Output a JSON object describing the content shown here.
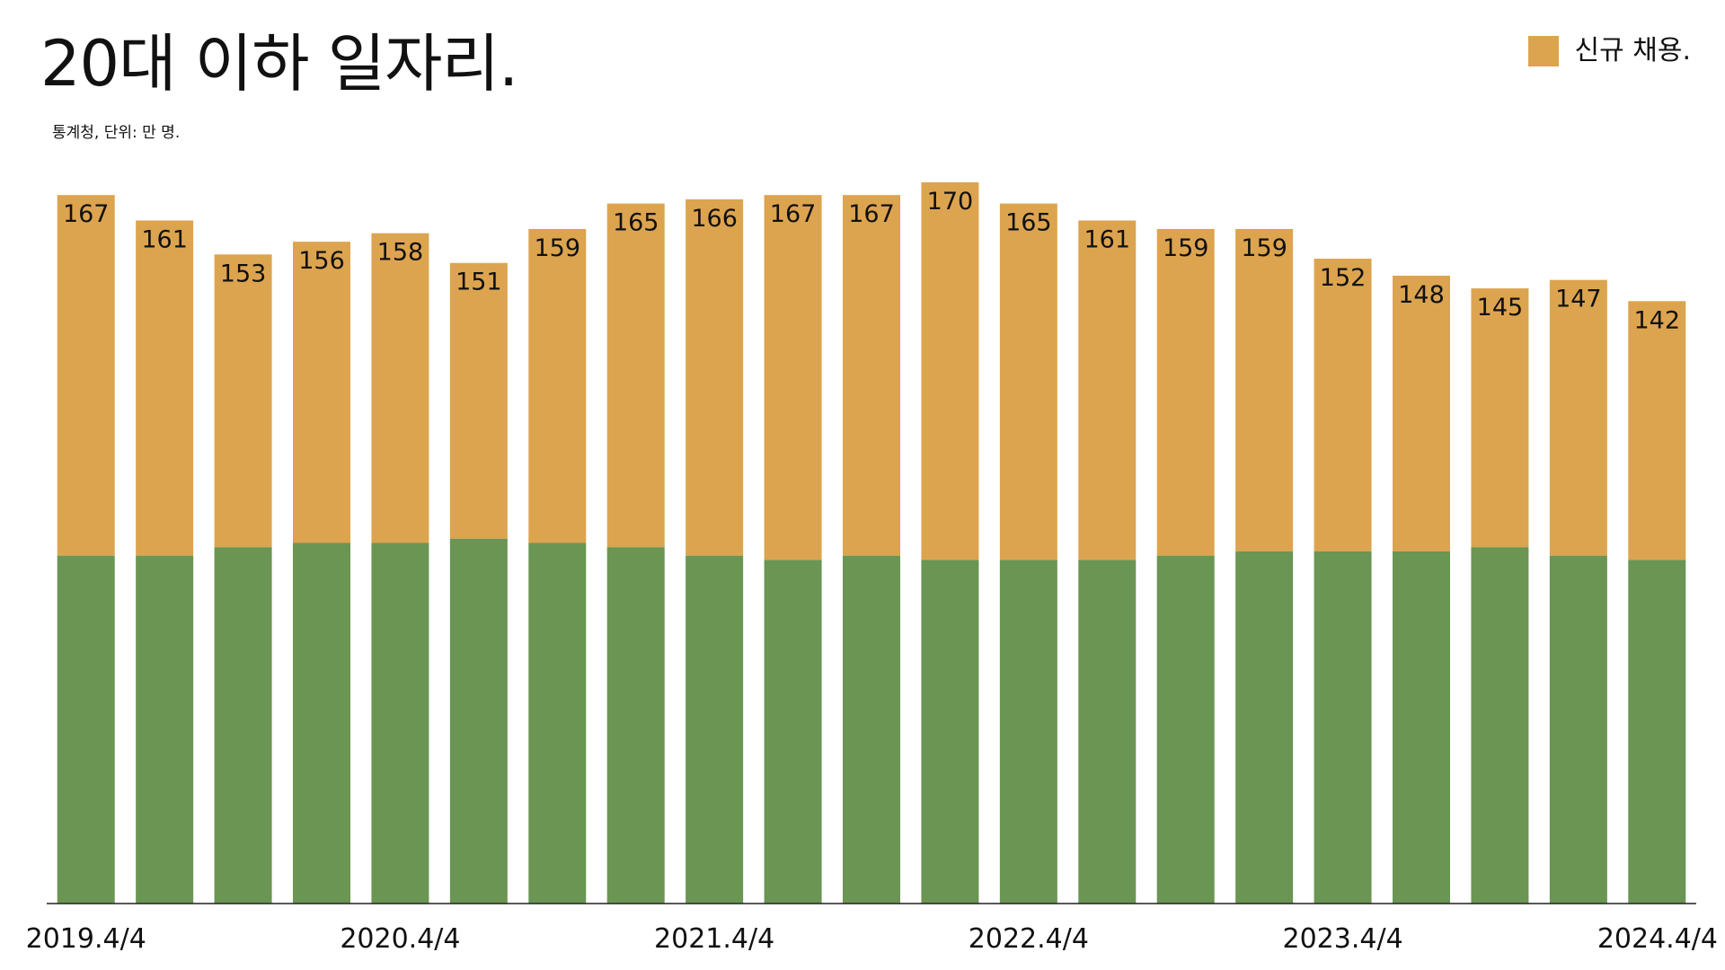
{
  "chart_data": {
    "type": "bar",
    "title": "20대 이하 일자리.",
    "subtitle": "통계청, 단위: 만 명.",
    "legend": [
      {
        "name": "신규 채용.",
        "color": "#DDA44F"
      }
    ],
    "legend_position": "top-right",
    "grid": false,
    "ylim": [
      0,
      170
    ],
    "categories": [
      "2019.4/4",
      "",
      "",
      "",
      "2020.4/4",
      "",
      "",
      "",
      "2021.4/4",
      "",
      "",
      "",
      "2022.4/4",
      "",
      "",
      "",
      "2023.4/4",
      "",
      "",
      "",
      "2024.4/4"
    ],
    "series": [
      {
        "color": "#6A9553",
        "values": [
          82,
          82,
          84,
          85,
          85,
          86,
          85,
          84,
          82,
          81,
          82,
          81,
          81,
          81,
          82,
          83,
          83,
          83,
          84,
          82,
          81
        ]
      },
      {
        "name": "신규 채용.",
        "color": "#DDA44F",
        "values": [
          167,
          161,
          153,
          156,
          158,
          151,
          159,
          165,
          166,
          167,
          167,
          170,
          165,
          161,
          159,
          159,
          152,
          148,
          145,
          147,
          142
        ]
      }
    ]
  }
}
